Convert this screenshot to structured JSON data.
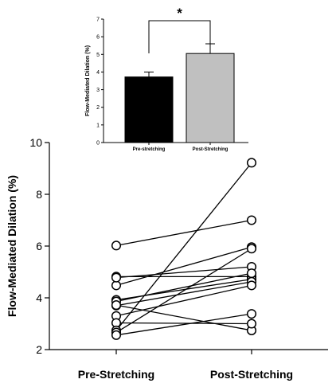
{
  "chart_data": [
    {
      "type": "bar",
      "categories": [
        "Pre-stretching",
        "Post-Stretching"
      ],
      "values": [
        3.72,
        5.05
      ],
      "errors": [
        0.28,
        0.55
      ],
      "bar_colors": [
        "#000000",
        "#c0c0c0"
      ],
      "ylabel": "Flow-Mediated Dilation (%)",
      "ylim": [
        0,
        7
      ],
      "yticks": [
        0,
        1,
        2,
        3,
        4,
        5,
        6,
        7
      ],
      "significance": "*",
      "grid": false
    },
    {
      "type": "line",
      "chart_kind": "paired-scatter",
      "categories": [
        "Pre-Stretching",
        "Post-Stretching"
      ],
      "ylabel": "Flow-Mediated Dilation (%)",
      "ylim": [
        2,
        10
      ],
      "yticks": [
        2,
        4,
        6,
        8,
        10
      ],
      "grid": false,
      "pairs": [
        {
          "pre": 6.02,
          "post": 7.0
        },
        {
          "pre": 4.82,
          "post": 4.82
        },
        {
          "pre": 4.48,
          "post": 5.96
        },
        {
          "pre": 4.78,
          "post": 5.2
        },
        {
          "pre": 3.92,
          "post": 4.72
        },
        {
          "pre": 3.86,
          "post": 4.95
        },
        {
          "pre": 3.7,
          "post": 4.62
        },
        {
          "pre": 3.72,
          "post": 2.74
        },
        {
          "pre": 3.3,
          "post": 4.48
        },
        {
          "pre": 3.03,
          "post": 3.0
        },
        {
          "pre": 2.74,
          "post": 9.22
        },
        {
          "pre": 2.66,
          "post": 5.9
        },
        {
          "pre": 2.56,
          "post": 3.38
        }
      ]
    }
  ]
}
